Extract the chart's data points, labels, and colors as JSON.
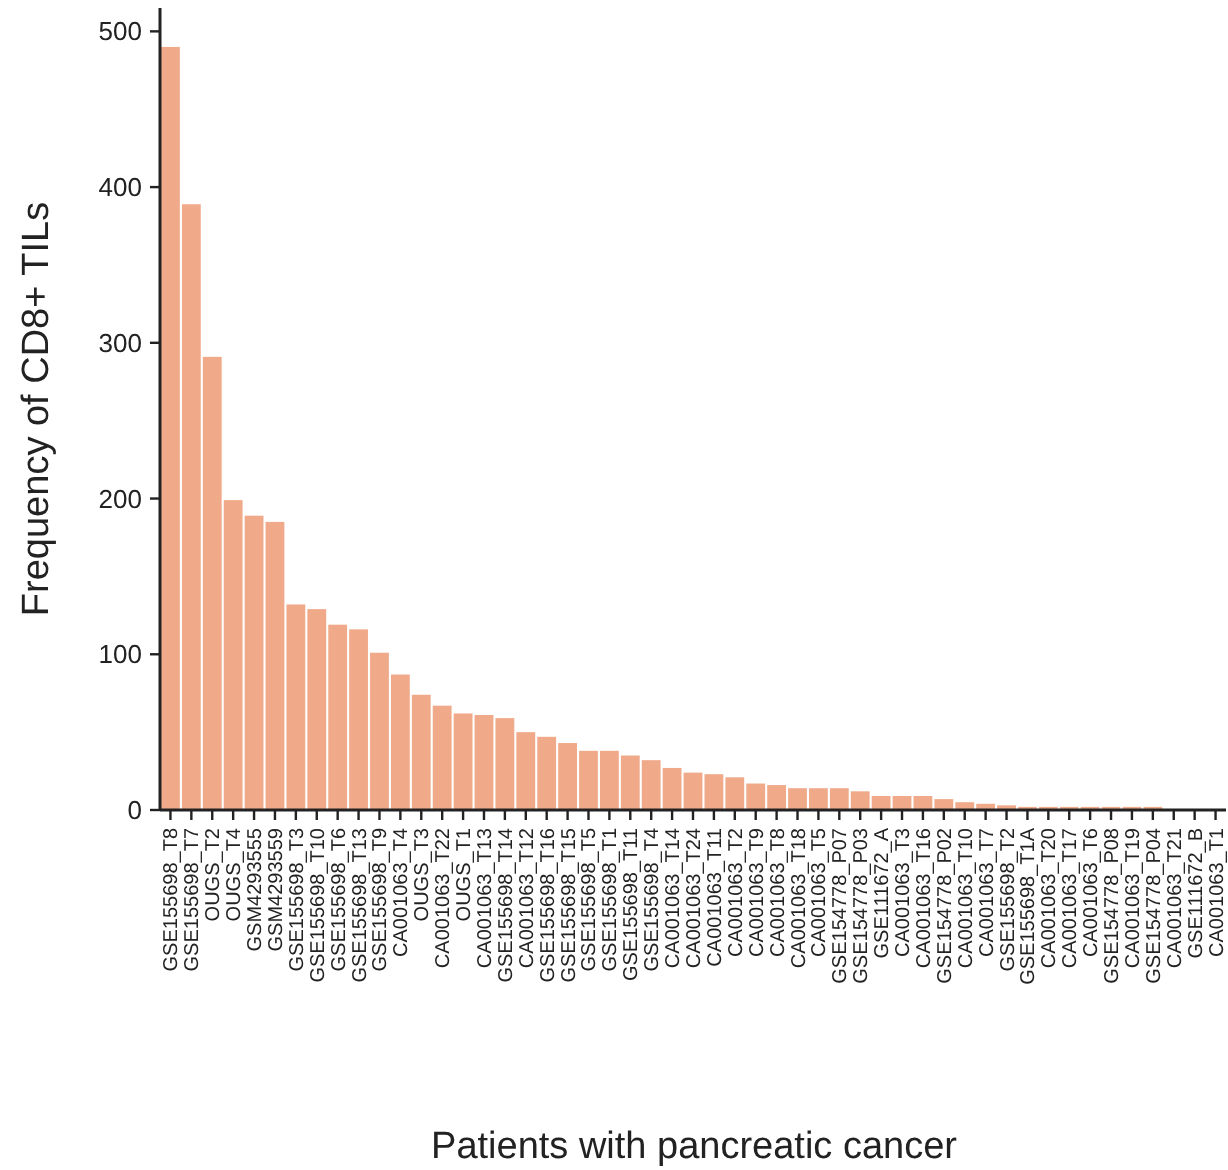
{
  "chart_data": {
    "type": "bar",
    "xlabel": "Patients with pancreatic cancer",
    "ylabel": "Frequency of CD8+ TILs",
    "categories": [
      "GSE155698_T8",
      "GSE155698_T7",
      "OUGS_T2",
      "OUGS_T4",
      "GSM4293555",
      "GSM4293559",
      "GSE155698_T3",
      "GSE155698_T10",
      "GSE155698_T6",
      "GSE155698_T13",
      "GSE155698_T9",
      "CA001063_T4",
      "OUGS_T3",
      "CA001063_T22",
      "OUGS_T1",
      "CA001063_T13",
      "GSE155698_T14",
      "CA001063_T12",
      "GSE155698_T16",
      "GSE155698_T15",
      "GSE155698_T5",
      "GSE155698_T1",
      "GSE155698_T11",
      "GSE155698_T4",
      "CA001063_T14",
      "CA001063_T24",
      "CA001063_T11",
      "CA001063_T2",
      "CA001063_T9",
      "CA001063_T8",
      "CA001063_T18",
      "CA001063_T5",
      "GSE154778_P07",
      "GSE154778_P03",
      "GSE111672_A",
      "CA001063_T3",
      "CA001063_T16",
      "GSE154778_P02",
      "CA001063_T10",
      "CA001063_T7",
      "GSE155698_T2",
      "GSE155698_T1A",
      "CA001063_T20",
      "CA001063_T17",
      "CA001063_T6",
      "GSE154778_P08",
      "CA001063_T19",
      "GSE154778_P04",
      "CA001063_T21",
      "GSE111672_B",
      "CA001063_T1"
    ],
    "values": [
      490,
      389,
      291,
      199,
      189,
      185,
      132,
      129,
      119,
      116,
      101,
      87,
      74,
      67,
      62,
      61,
      59,
      50,
      47,
      43,
      38,
      38,
      35,
      32,
      27,
      24,
      23,
      21,
      17,
      16,
      14,
      14,
      14,
      12,
      9,
      9,
      9,
      7,
      5,
      4,
      3,
      2,
      2,
      2,
      2,
      2,
      2,
      2,
      null,
      null,
      null
    ],
    "color": "#f0aa8a",
    "ylim": [
      0,
      515
    ],
    "yticks": [
      0,
      100,
      200,
      300,
      400,
      500
    ]
  }
}
